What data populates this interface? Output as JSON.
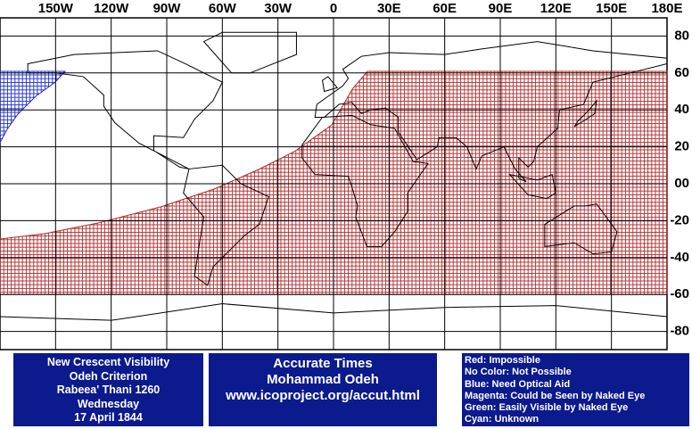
{
  "map": {
    "longitude_labels": [
      "150W",
      "120W",
      "90W",
      "60W",
      "30W",
      "0",
      "30E",
      "60E",
      "90E",
      "120E",
      "150E",
      "180E"
    ],
    "latitude_labels": [
      "80",
      "60",
      "40",
      "20",
      "00",
      "-20",
      "-40",
      "-60",
      "-80"
    ]
  },
  "info_box": {
    "lines": [
      "New Crescent Visibility",
      "Odeh Criterion",
      "Rabeea' Thani 1260",
      "Wednesday",
      "17 April 1844"
    ]
  },
  "credit_box": {
    "lines": [
      "Accurate Times",
      "Mohammad Odeh",
      "www.icoproject.org/accut.html"
    ]
  },
  "legend": {
    "items": [
      "Red: Impossible",
      "No Color: Not Possible",
      "Blue: Need Optical Aid",
      "Magenta: Could be Seen by Naked Eye",
      "Green: Easily Visible by Naked Eye",
      "Cyan: Unknown"
    ]
  }
}
